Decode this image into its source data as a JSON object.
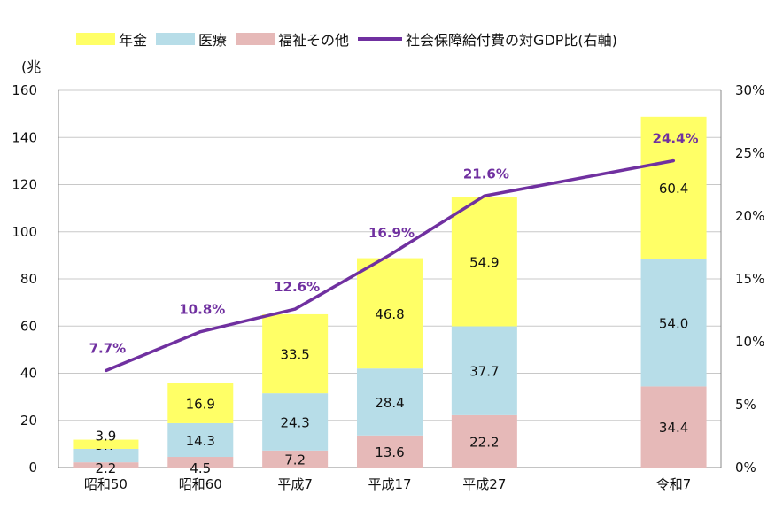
{
  "chart_data": {
    "type": "bar",
    "stacked": true,
    "categories": [
      "昭和50",
      "昭和60",
      "平成7",
      "平成17",
      "平成27",
      "",
      "令和7"
    ],
    "series": [
      {
        "name": "福祉その他",
        "values": [
          2.2,
          4.5,
          7.2,
          13.6,
          22.2,
          null,
          34.4
        ],
        "color": "#e6b9b8"
      },
      {
        "name": "医療",
        "values": [
          5.7,
          14.3,
          24.3,
          28.4,
          37.7,
          null,
          54.0
        ],
        "color": "#b7dde8"
      },
      {
        "name": "年金",
        "values": [
          3.9,
          16.9,
          33.5,
          46.8,
          54.9,
          null,
          60.4
        ],
        "color": "#ffff66"
      }
    ],
    "line_series": {
      "name": "社会保障給付費の対GDP比(右軸)",
      "values": [
        7.7,
        10.8,
        12.6,
        16.9,
        21.6,
        null,
        24.4
      ],
      "labels": [
        "7.7%",
        "10.8%",
        "12.6%",
        "16.9%",
        "21.6%",
        "",
        "24.4%"
      ],
      "color": "#7030a0",
      "axis": "right"
    },
    "y_ticks": [
      "0",
      "20",
      "40",
      "60",
      "80",
      "100",
      "120",
      "140",
      "160"
    ],
    "y2_ticks": [
      "0%",
      "5%",
      "10%",
      "15%",
      "20%",
      "25%",
      "30%"
    ],
    "ylim": [
      0,
      160
    ],
    "y2lim": [
      0,
      30
    ],
    "ylabel": "(兆",
    "grid": true,
    "legend_position": "top"
  },
  "legend_order": [
    {
      "name": "年金",
      "kind": "box",
      "color": "#ffff66"
    },
    {
      "name": "医療",
      "kind": "box",
      "color": "#b7dde8"
    },
    {
      "name": "福祉その他",
      "kind": "box",
      "color": "#e6b9b8"
    },
    {
      "name": "社会保障給付費の対GDP比(右軸)",
      "kind": "line",
      "color": "#7030a0"
    }
  ]
}
